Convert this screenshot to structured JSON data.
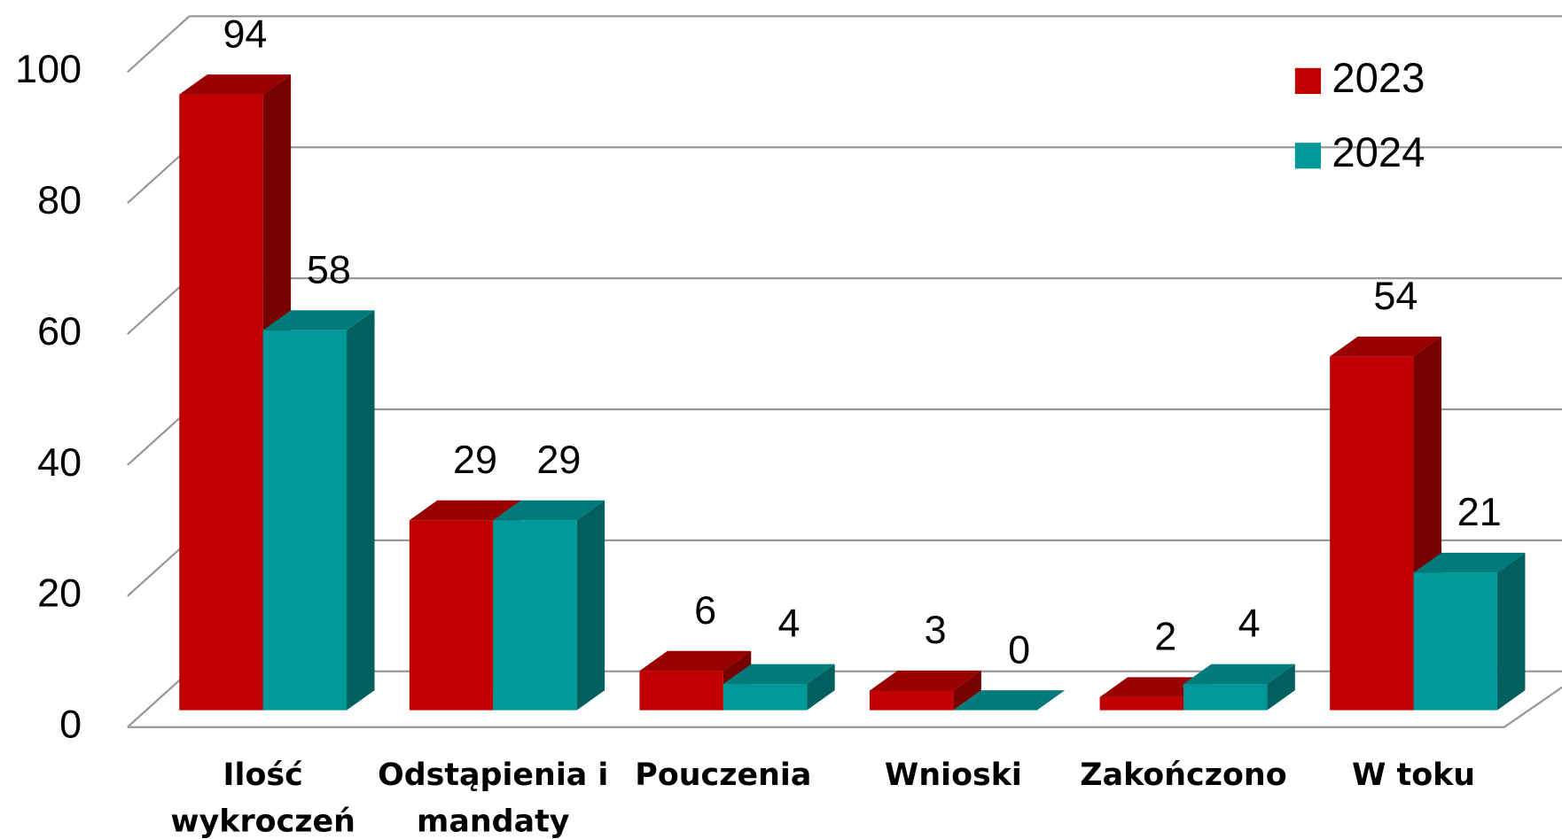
{
  "chart_data": {
    "type": "bar3d",
    "categories": [
      "Ilość wykroczeń",
      "Odstąpienia i mandaty",
      "Pouczenia",
      "Wnioski",
      "Zakończono",
      "W toku"
    ],
    "series": [
      {
        "name": "2023",
        "color": "#c00000",
        "values": [
          94,
          29,
          6,
          3,
          2,
          54
        ]
      },
      {
        "name": "2024",
        "color": "#009999",
        "values": [
          58,
          29,
          4,
          0,
          4,
          21
        ]
      }
    ],
    "ylim": [
      0,
      100
    ],
    "yticks": [
      0,
      20,
      40,
      60,
      80,
      100
    ],
    "grid": true,
    "legend": "top-right"
  }
}
